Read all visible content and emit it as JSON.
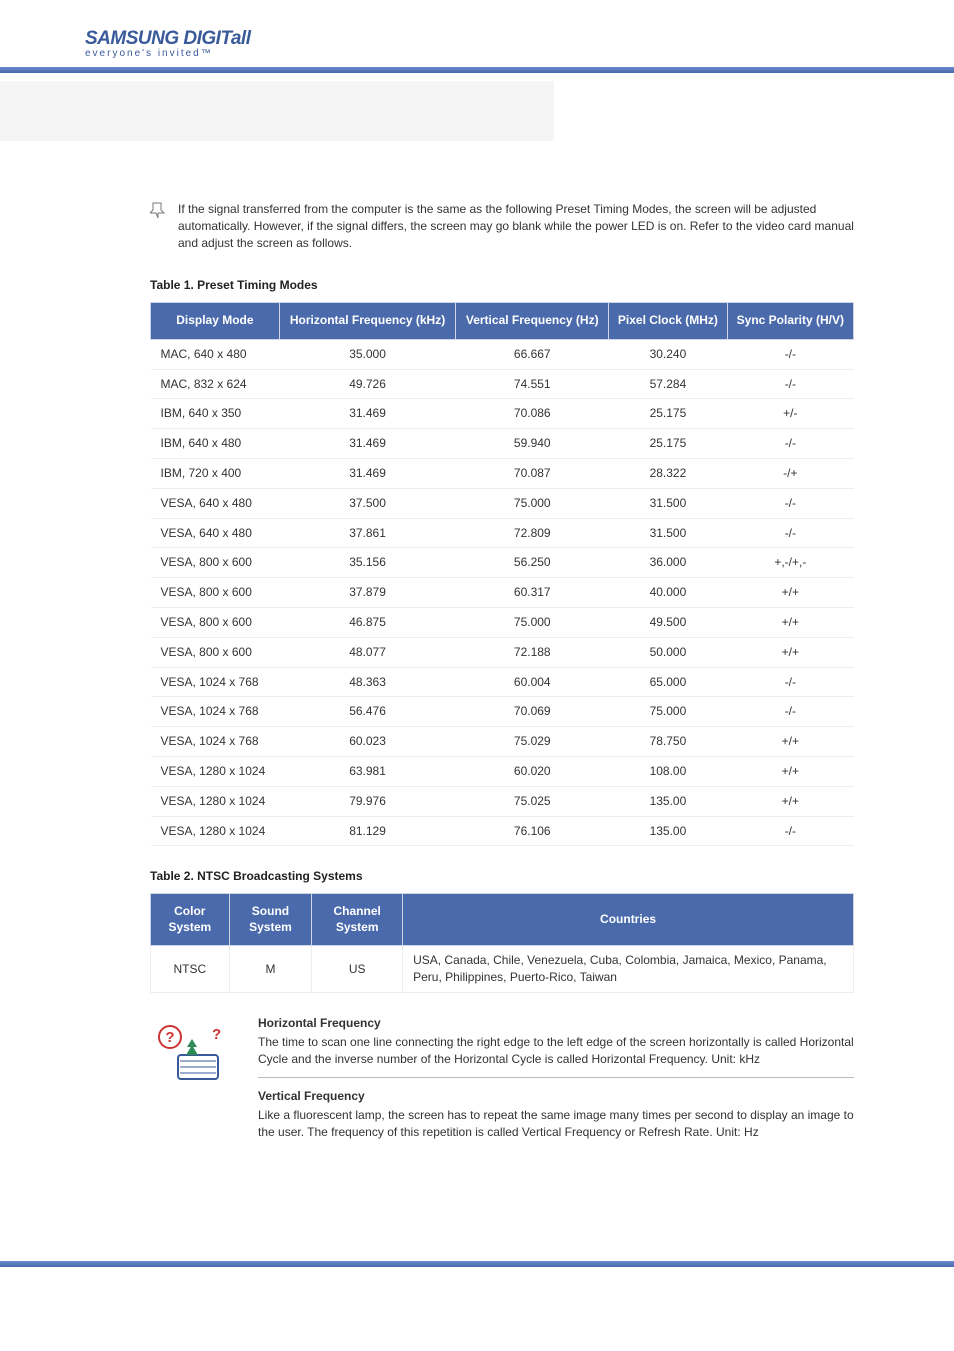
{
  "logo": {
    "main_left": "SAMSUNG DIGIT",
    "main_right": "all",
    "sub_left": "everyone's invited",
    "sub_right": "™"
  },
  "intro": "If the signal transferred from the computer is the same as the following Preset Timing Modes, the screen will be adjusted automatically. However, if the signal differs, the screen may go blank while the power LED is on. Refer to the video card manual and adjust the screen as follows.",
  "table1": {
    "title": "Table 1. Preset Timing Modes",
    "headers": [
      "Display Mode",
      "Horizontal Frequency (kHz)",
      "Vertical Frequency (Hz)",
      "Pixel Clock (MHz)",
      "Sync Polarity (H/V)"
    ],
    "rows": [
      [
        "MAC, 640 x 480",
        "35.000",
        "66.667",
        "30.240",
        "-/-"
      ],
      [
        "MAC, 832 x 624",
        "49.726",
        "74.551",
        "57.284",
        "-/-"
      ],
      [
        "IBM, 640 x 350",
        "31.469",
        "70.086",
        "25.175",
        "+/-"
      ],
      [
        "IBM, 640 x 480",
        "31.469",
        "59.940",
        "25.175",
        "-/-"
      ],
      [
        "IBM, 720 x 400",
        "31.469",
        "70.087",
        "28.322",
        "-/+"
      ],
      [
        "VESA, 640 x 480",
        "37.500",
        "75.000",
        "31.500",
        "-/-"
      ],
      [
        "VESA, 640 x 480",
        "37.861",
        "72.809",
        "31.500",
        "-/-"
      ],
      [
        "VESA, 800 x 600",
        "35.156",
        "56.250",
        "36.000",
        "+,-/+,-"
      ],
      [
        "VESA, 800 x 600",
        "37.879",
        "60.317",
        "40.000",
        "+/+"
      ],
      [
        "VESA, 800 x 600",
        "46.875",
        "75.000",
        "49.500",
        "+/+"
      ],
      [
        "VESA, 800 x 600",
        "48.077",
        "72.188",
        "50.000",
        "+/+"
      ],
      [
        "VESA, 1024 x 768",
        "48.363",
        "60.004",
        "65.000",
        "-/-"
      ],
      [
        "VESA, 1024 x 768",
        "56.476",
        "70.069",
        "75.000",
        "-/-"
      ],
      [
        "VESA, 1024 x 768",
        "60.023",
        "75.029",
        "78.750",
        "+/+"
      ],
      [
        "VESA, 1280 x 1024",
        "63.981",
        "60.020",
        "108.00",
        "+/+"
      ],
      [
        "VESA, 1280 x 1024",
        "79.976",
        "75.025",
        "135.00",
        "+/+"
      ],
      [
        "VESA, 1280 x 1024",
        "81.129",
        "76.106",
        "135.00",
        "-/-"
      ]
    ],
    "header_bg": "#4a6aac",
    "header_color": "#ffffff",
    "row_border": "#eeeeee"
  },
  "table2": {
    "title": "Table 2. NTSC Broadcasting Systems",
    "headers": [
      "Color System",
      "Sound System",
      "Channel System",
      "Countries"
    ],
    "rows": [
      [
        "NTSC",
        "M",
        "US",
        "USA, Canada, Chile, Venezuela, Cuba, Colombia, Jamaica, Mexico, Panama, Peru, Philippines, Puerto-Rico, Taiwan"
      ]
    ]
  },
  "defs": {
    "hf_title": "Horizontal Frequency",
    "hf_body": "The time to scan one line connecting the right edge to the left edge of the screen horizontally is called Horizontal Cycle and the inverse number of the Horizontal Cycle is called Horizontal Frequency. Unit: kHz",
    "vf_title": "Vertical Frequency",
    "vf_body": "Like a fluorescent lamp, the screen has to repeat the same image many times per second to display an image to the user. The frequency of this repetition is called Vertical Frequency or Refresh Rate. Unit: Hz"
  },
  "colors": {
    "brand_blue": "#4a6aac",
    "accent_red": "#cc3333",
    "accent_green": "#2e8b57",
    "accent_blue": "#3a5a9a"
  }
}
